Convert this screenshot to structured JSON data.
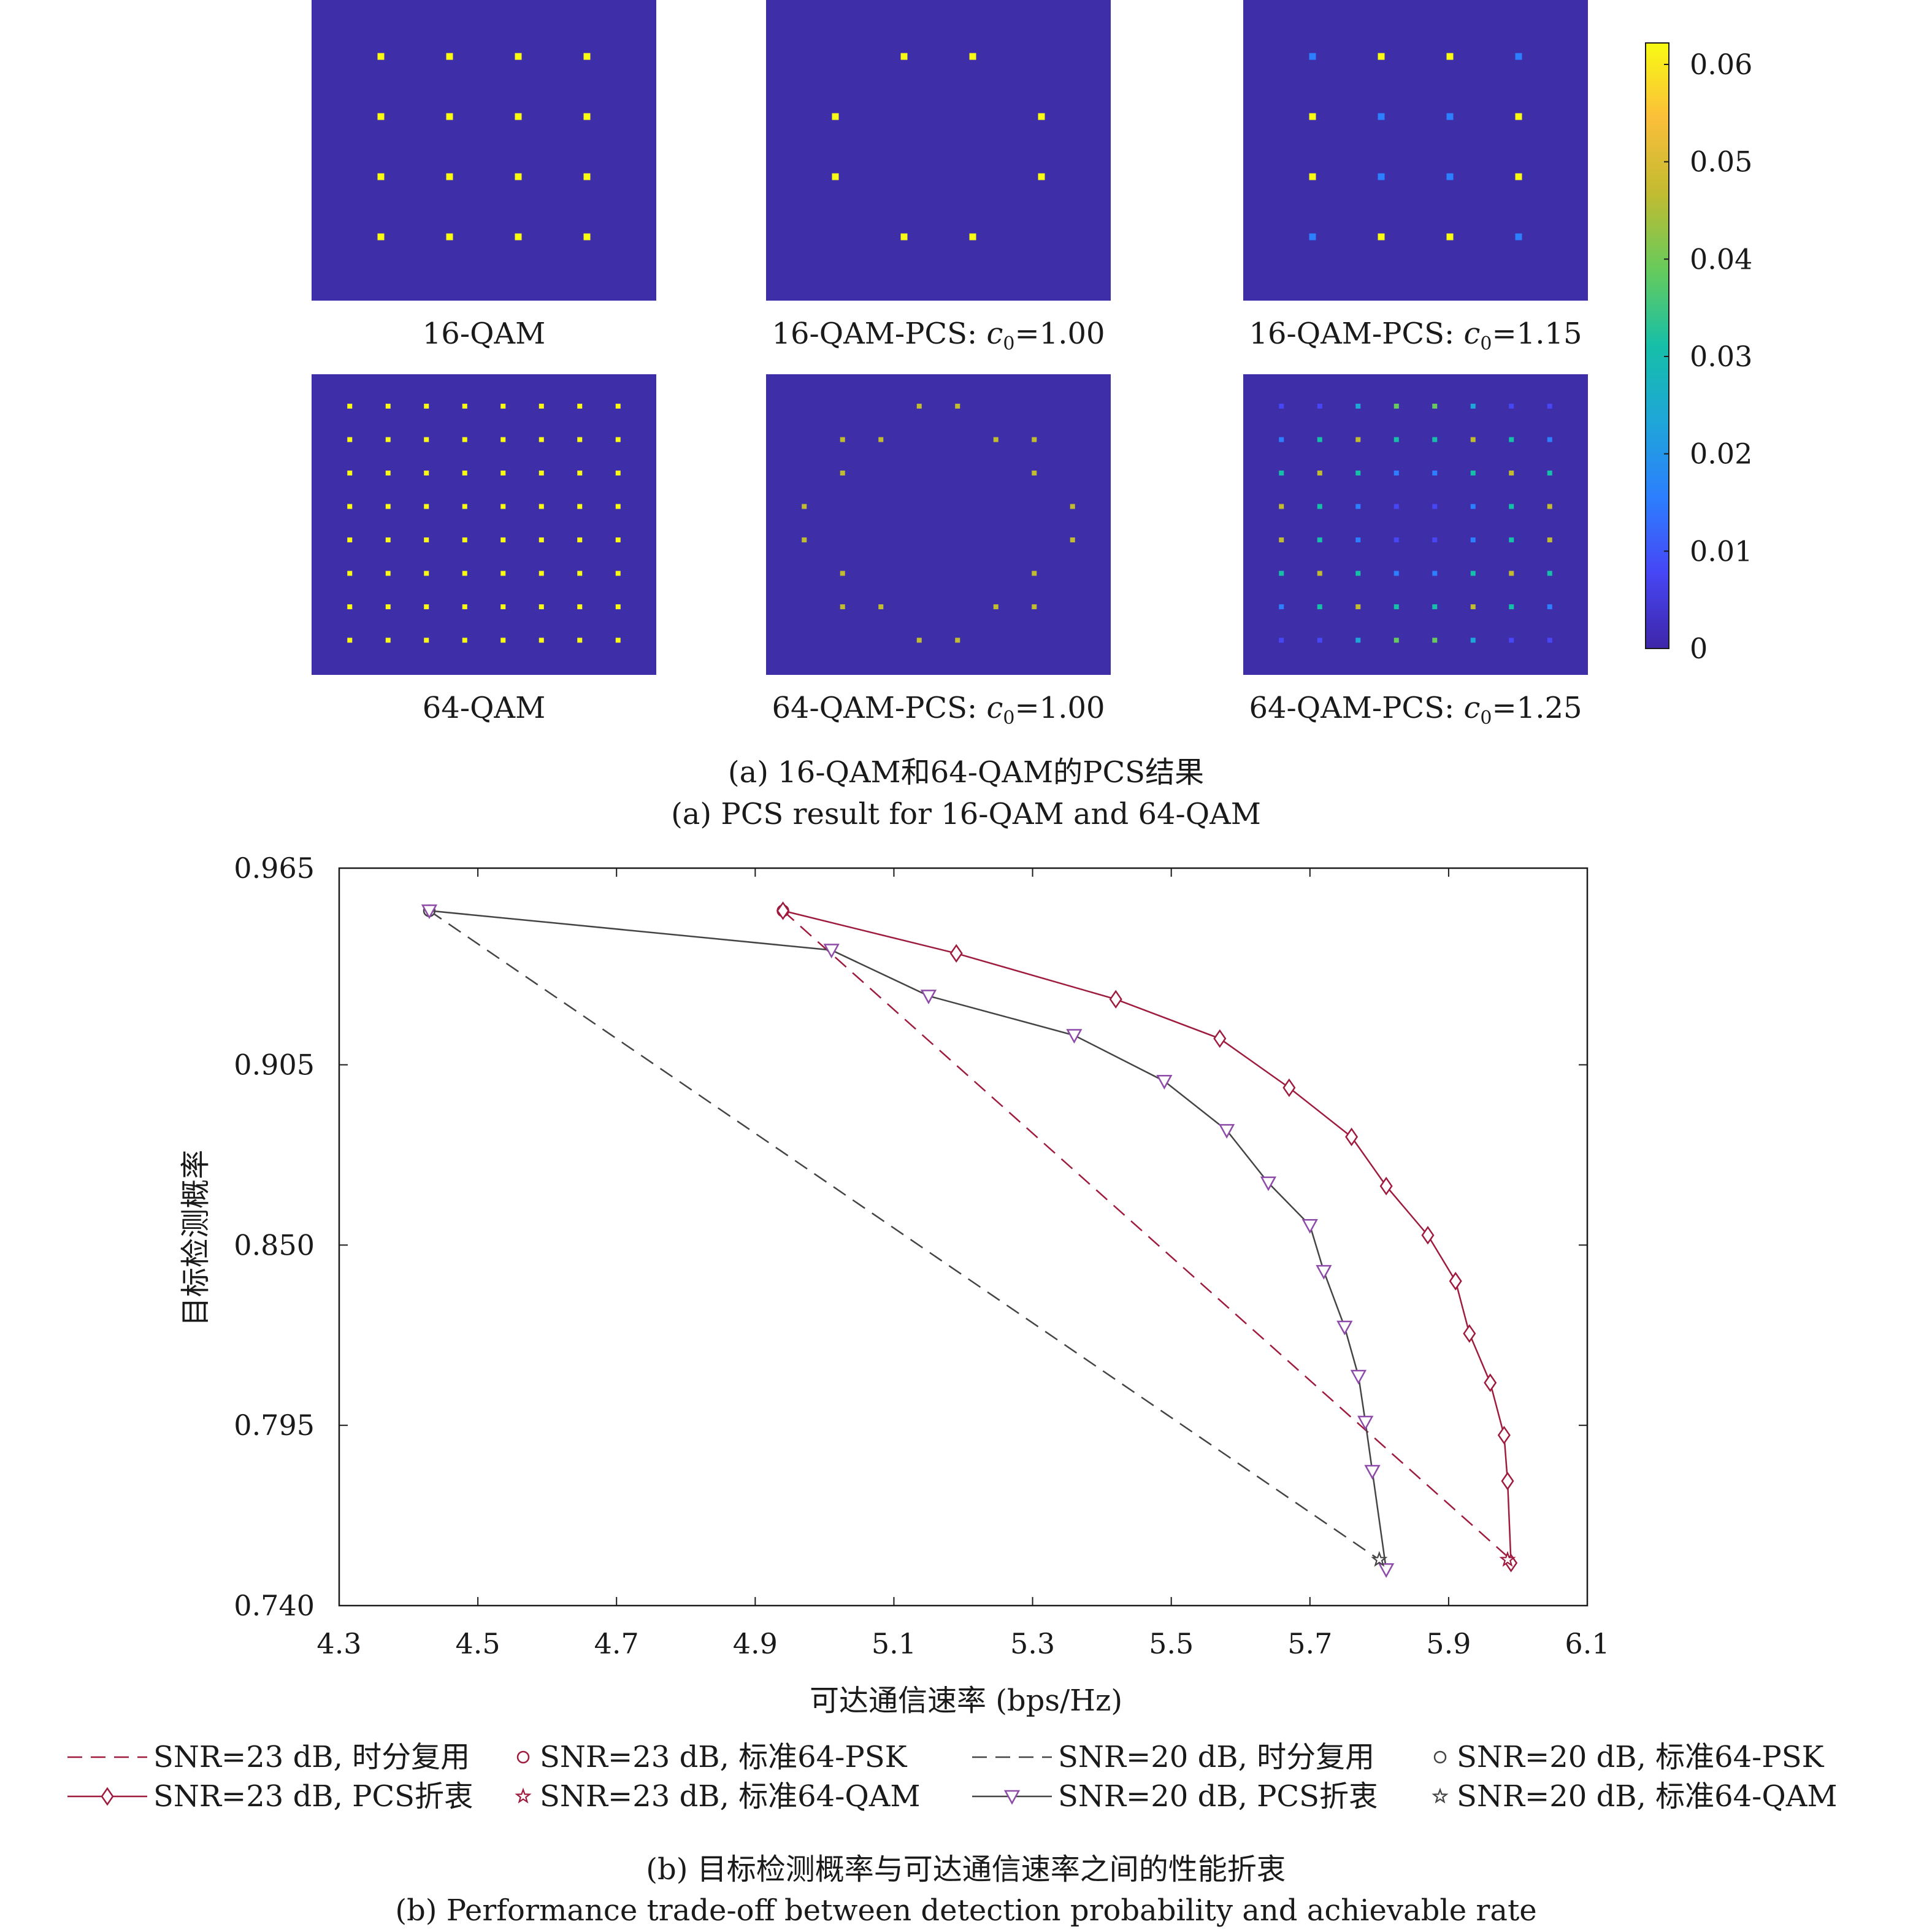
{
  "panel_a": {
    "colors": {
      "background": "#3e2ea8",
      "colormap": [
        "#3e26a8",
        "#4646f5",
        "#2c7ffe",
        "#1ea6d8",
        "#16bfa8",
        "#66cb5c",
        "#c1bb31",
        "#fbbe3a",
        "#f8fa14"
      ]
    },
    "colorbar": {
      "ticks": [
        "0.06",
        "0.05",
        "0.04",
        "0.03",
        "0.02",
        "0.01",
        "0"
      ]
    },
    "subplots": [
      {
        "label": "16-QAM",
        "grid": 4,
        "dots": [
          [
            9,
            9,
            9,
            9
          ],
          [
            9,
            9,
            9,
            9
          ],
          [
            9,
            9,
            9,
            9
          ],
          [
            9,
            9,
            9,
            9
          ]
        ]
      },
      {
        "label": "16-QAM-PCS: ",
        "c0": "c",
        "sub": "0",
        "val": "=1.00",
        "grid": 4,
        "dots": [
          [
            0,
            9,
            9,
            0
          ],
          [
            9,
            0,
            0,
            9
          ],
          [
            9,
            0,
            0,
            9
          ],
          [
            0,
            9,
            9,
            0
          ]
        ]
      },
      {
        "label": "16-QAM-PCS: ",
        "c0": "c",
        "sub": "0",
        "val": "=1.15",
        "grid": 4,
        "dots": [
          [
            3,
            9,
            9,
            3
          ],
          [
            9,
            3,
            3,
            9
          ],
          [
            9,
            3,
            3,
            9
          ],
          [
            3,
            9,
            9,
            3
          ]
        ]
      },
      {
        "label": "64-QAM",
        "grid": 8,
        "dots": [
          [
            9,
            9,
            9,
            9,
            9,
            9,
            9,
            9
          ],
          [
            9,
            9,
            9,
            9,
            9,
            9,
            9,
            9
          ],
          [
            9,
            9,
            9,
            9,
            9,
            9,
            9,
            9
          ],
          [
            9,
            9,
            9,
            9,
            9,
            9,
            9,
            9
          ],
          [
            9,
            9,
            9,
            9,
            9,
            9,
            9,
            9
          ],
          [
            9,
            9,
            9,
            9,
            9,
            9,
            9,
            9
          ],
          [
            9,
            9,
            9,
            9,
            9,
            9,
            9,
            9
          ],
          [
            9,
            9,
            9,
            9,
            9,
            9,
            9,
            9
          ]
        ]
      },
      {
        "label": "64-QAM-PCS: ",
        "c0": "c",
        "sub": "0",
        "val": "=1.00",
        "grid": 8,
        "dots": [
          [
            0,
            0,
            0,
            7,
            7,
            0,
            0,
            0
          ],
          [
            0,
            7,
            7,
            0,
            0,
            7,
            7,
            0
          ],
          [
            0,
            7,
            0,
            0,
            0,
            0,
            7,
            0
          ],
          [
            7,
            0,
            0,
            0,
            0,
            0,
            0,
            7
          ],
          [
            7,
            0,
            0,
            0,
            0,
            0,
            0,
            7
          ],
          [
            0,
            7,
            0,
            0,
            0,
            0,
            7,
            0
          ],
          [
            0,
            7,
            7,
            0,
            0,
            7,
            7,
            0
          ],
          [
            0,
            0,
            0,
            7,
            7,
            0,
            0,
            0
          ]
        ]
      },
      {
        "label": "64-QAM-PCS: ",
        "c0": "c",
        "sub": "0",
        "val": "=1.25",
        "grid": 8,
        "dots": [
          [
            2,
            2,
            4,
            6,
            6,
            4,
            2,
            2
          ],
          [
            3,
            5,
            7,
            5,
            5,
            7,
            5,
            3
          ],
          [
            5,
            7,
            5,
            3,
            3,
            5,
            7,
            5
          ],
          [
            7,
            5,
            3,
            2,
            2,
            3,
            5,
            7
          ],
          [
            7,
            5,
            3,
            2,
            2,
            3,
            5,
            7
          ],
          [
            5,
            7,
            5,
            3,
            3,
            5,
            7,
            5
          ],
          [
            3,
            5,
            7,
            5,
            5,
            7,
            5,
            3
          ],
          [
            2,
            2,
            4,
            6,
            6,
            4,
            2,
            2
          ]
        ]
      }
    ],
    "caption_cn": "(a) 16-QAM和64-QAM的PCS结果",
    "caption_en": "(a) PCS result for 16-QAM and 64-QAM"
  },
  "panel_b": {
    "caption_cn": "(b) 目标检测概率与可达通信速率之间的性能折衷",
    "caption_en": "(b) Performance trade-off between detection probability and achievable rate"
  },
  "chart_data": {
    "type": "line",
    "title": "",
    "xlabel": "可达通信速率 (bps/Hz)",
    "ylabel": "目标检测概率",
    "xlim": [
      4.3,
      6.1
    ],
    "ylim": [
      0.74,
      0.965
    ],
    "xticks": [
      "4.3",
      "4.5",
      "4.7",
      "4.9",
      "5.1",
      "5.3",
      "5.5",
      "5.7",
      "5.9",
      "6.1"
    ],
    "yticks": [
      "0.740",
      "0.795",
      "0.850",
      "0.905",
      "0.965"
    ],
    "grid": false,
    "legend_position": "bottom",
    "series": [
      {
        "name": "SNR=23 dB, 时分复用",
        "color": "#9e1b3e",
        "style": "dashed",
        "marker": "none",
        "x": [
          4.94,
          5.99
        ],
        "y": [
          0.952,
          0.754
        ]
      },
      {
        "name": "SNR=23 dB, 标准64-PSK",
        "color": "#9e1b3e",
        "style": "none",
        "marker": "circle",
        "x": [
          4.94
        ],
        "y": [
          0.952
        ]
      },
      {
        "name": "SNR=20 dB, 时分复用",
        "color": "#444444",
        "style": "dashed",
        "marker": "none",
        "x": [
          4.43,
          5.8
        ],
        "y": [
          0.952,
          0.754
        ]
      },
      {
        "name": "SNR=20 dB, 标准64-PSK",
        "color": "#444444",
        "style": "none",
        "marker": "circle",
        "x": [
          4.43
        ],
        "y": [
          0.952
        ]
      },
      {
        "name": "SNR=23 dB, PCS折衷",
        "color": "#9e1b3e",
        "style": "solid",
        "marker": "diamond",
        "x": [
          4.94,
          5.19,
          5.42,
          5.57,
          5.67,
          5.76,
          5.81,
          5.87,
          5.91,
          5.93,
          5.96,
          5.98,
          5.985,
          5.99
        ],
        "y": [
          0.952,
          0.939,
          0.925,
          0.913,
          0.898,
          0.883,
          0.868,
          0.853,
          0.839,
          0.823,
          0.808,
          0.792,
          0.778,
          0.753
        ]
      },
      {
        "name": "SNR=23 dB, 标准64-QAM",
        "color": "#9e1b3e",
        "style": "none",
        "marker": "star",
        "x": [
          5.985
        ],
        "y": [
          0.754
        ]
      },
      {
        "name": "SNR=20 dB, PCS折衷",
        "color": "#444444",
        "style": "solid",
        "marker": "triangle-down",
        "x": [
          4.43,
          5.01,
          5.15,
          5.36,
          5.49,
          5.58,
          5.64,
          5.7,
          5.72,
          5.75,
          5.77,
          5.78,
          5.79,
          5.81
        ],
        "y": [
          0.952,
          0.94,
          0.926,
          0.914,
          0.9,
          0.885,
          0.869,
          0.856,
          0.842,
          0.825,
          0.81,
          0.796,
          0.781,
          0.751
        ]
      },
      {
        "name": "SNR=20 dB, 标准64-QAM",
        "color": "#444444",
        "style": "none",
        "marker": "star",
        "x": [
          5.8
        ],
        "y": [
          0.754
        ]
      }
    ]
  }
}
